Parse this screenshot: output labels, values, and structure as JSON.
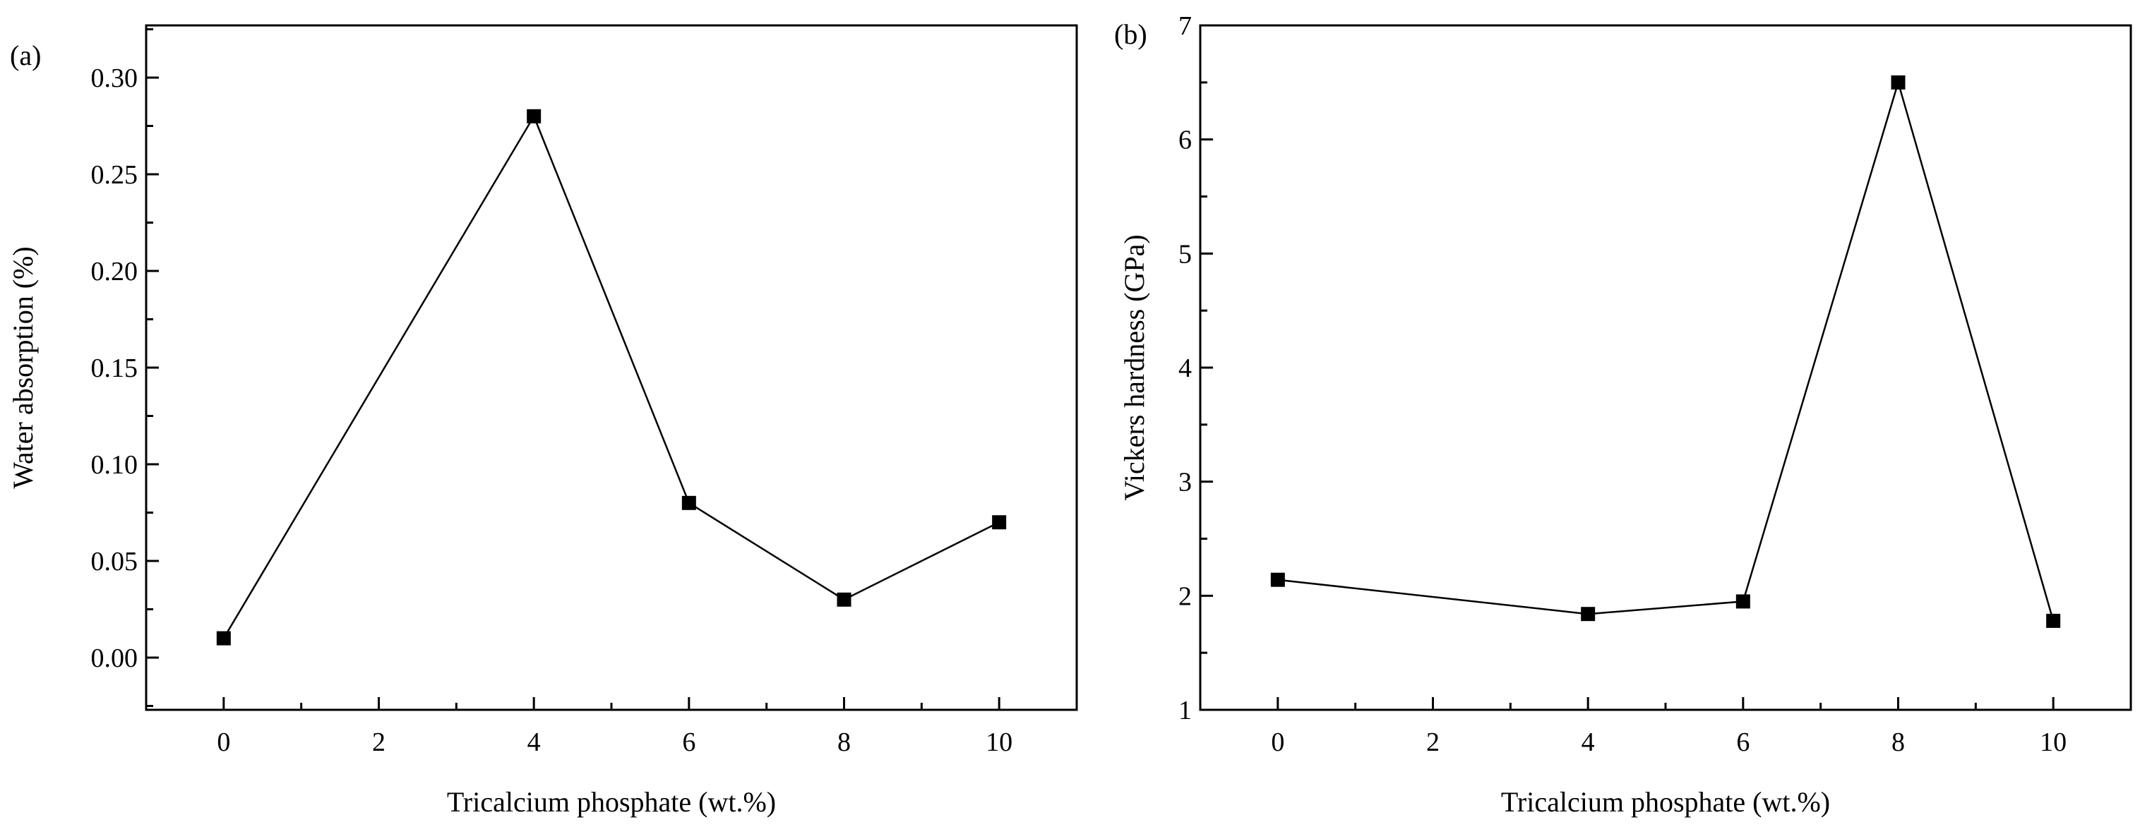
{
  "chart_data": [
    {
      "panel": "(a)",
      "type": "line",
      "xlabel": "Tricalcium phosphate (wt.%)",
      "ylabel": "Water absorption (%)",
      "xlim": [
        -1,
        11
      ],
      "ylim": [
        -0.027,
        0.327
      ],
      "xticks": [
        0,
        2,
        4,
        6,
        8,
        10
      ],
      "xtick_labels": [
        "0",
        "2",
        "4",
        "6",
        "8",
        "10"
      ],
      "yticks": [
        0.0,
        0.05,
        0.1,
        0.15,
        0.2,
        0.25,
        0.3
      ],
      "ytick_labels": [
        "0.00",
        "0.05",
        "0.10",
        "0.15",
        "0.20",
        "0.25",
        "0.30"
      ],
      "series": [
        {
          "name": "Water absorption",
          "x": [
            0,
            4,
            6,
            8,
            10
          ],
          "y": [
            0.01,
            0.28,
            0.08,
            0.03,
            0.07
          ]
        }
      ]
    },
    {
      "panel": "(b)",
      "type": "line",
      "xlabel": "Tricalcium phosphate (wt.%)",
      "ylabel": "Vickers hardness (GPa)",
      "xlim": [
        -1,
        11
      ],
      "ylim": [
        1,
        7
      ],
      "xticks": [
        0,
        2,
        4,
        6,
        8,
        10
      ],
      "xtick_labels": [
        "0",
        "2",
        "4",
        "6",
        "8",
        "10"
      ],
      "yticks": [
        1,
        2,
        3,
        4,
        5,
        6,
        7
      ],
      "ytick_labels": [
        "1",
        "2",
        "3",
        "4",
        "5",
        "6",
        "7"
      ],
      "series": [
        {
          "name": "Vickers hardness",
          "x": [
            0,
            4,
            6,
            8,
            10
          ],
          "y": [
            2.14,
            1.84,
            1.95,
            6.5,
            1.78
          ]
        }
      ]
    }
  ]
}
